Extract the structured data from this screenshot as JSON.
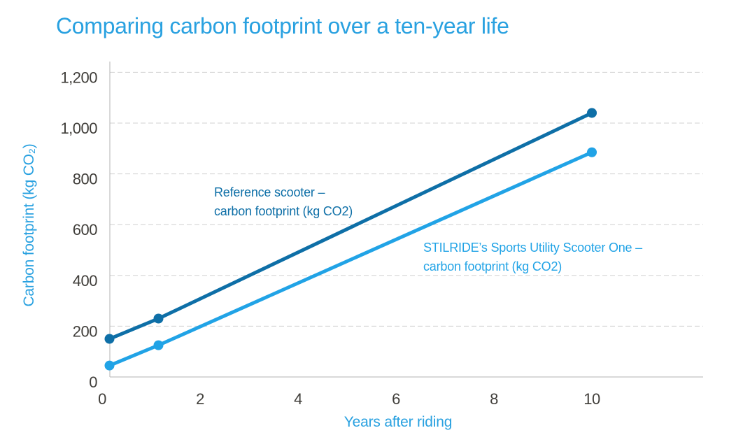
{
  "title": "Comparing carbon footprint over a ten-year life",
  "colors": {
    "background": "#FFFFFF",
    "title_text": "#29A1E0",
    "axis_title_text": "#29A1E0",
    "tick_text": "#403E3A",
    "axis_line": "#B3B3B3",
    "gridline": "#D0D0D0"
  },
  "chart_data": {
    "type": "line",
    "title": "Comparing carbon footprint over a ten-year life",
    "xlabel": "Years after riding",
    "ylabel": "Carbon footprint (kg CO₂)",
    "xlim": [
      0,
      12.3
    ],
    "ylim": [
      0,
      1200
    ],
    "x_ticks": [
      0,
      2,
      4,
      6,
      8,
      10
    ],
    "y_ticks": [
      0,
      200,
      400,
      600,
      800,
      1000,
      1200
    ],
    "y_tick_labels": [
      "0",
      "200",
      "400",
      "600",
      "800",
      "1,000",
      "1,200"
    ],
    "grid": "horizontal dashed gridlines only",
    "legend": "inline text annotations beside each line",
    "series": [
      {
        "name": "Reference scooter – carbon footprint (kg CO2)",
        "color": "#0E6FA7",
        "x": [
          0.15,
          1.15,
          10
        ],
        "y": [
          150,
          230,
          1040
        ]
      },
      {
        "name": "STILRIDE’s Sports Utility Scooter One – carbon footprint (kg CO2)",
        "color": "#21A3E6",
        "x": [
          0.15,
          1.15,
          10
        ],
        "y": [
          45,
          125,
          885
        ]
      }
    ],
    "annotations": [
      {
        "series": 0,
        "lines": [
          "Reference scooter –",
          "carbon footprint (kg CO2)"
        ]
      },
      {
        "series": 1,
        "lines": [
          "STILRIDE’s Sports Utility Scooter One –",
          "carbon footprint (kg CO2)"
        ]
      }
    ]
  }
}
